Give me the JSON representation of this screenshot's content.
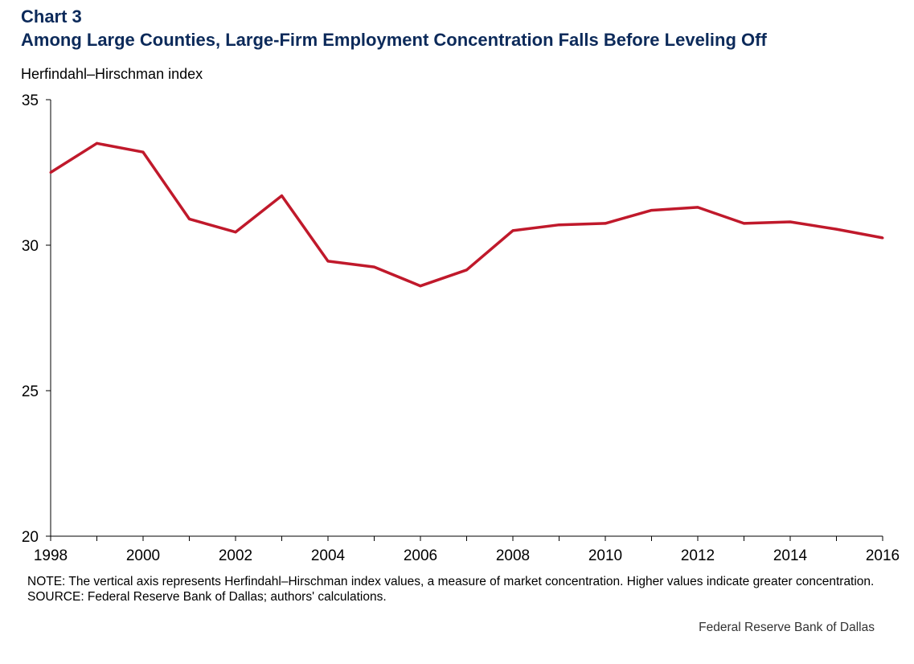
{
  "header": {
    "chart_label": "Chart 3",
    "title": "Among Large Counties, Large-Firm Employment Concentration Falls Before Leveling Off"
  },
  "colors": {
    "title": "#0c2a5a",
    "series": "#c0192b",
    "axis": "#000000"
  },
  "chart_data": {
    "type": "line",
    "title": "Among Large Counties, Large-Firm Employment Concentration Falls Before Leveling Off",
    "xlabel": "",
    "ylabel": "Herfindahl–Hirschman index",
    "x": [
      1998,
      1999,
      2000,
      2001,
      2002,
      2003,
      2004,
      2005,
      2006,
      2007,
      2008,
      2009,
      2010,
      2011,
      2012,
      2013,
      2014,
      2015,
      2016
    ],
    "series": [
      {
        "name": "Herfindahl–Hirschman index",
        "values": [
          32.5,
          33.5,
          33.2,
          30.9,
          30.45,
          31.7,
          29.45,
          29.25,
          28.6,
          29.15,
          30.5,
          30.7,
          30.75,
          31.2,
          31.3,
          30.75,
          30.8,
          30.55,
          30.25
        ]
      }
    ],
    "xlim": [
      1998,
      2016
    ],
    "ylim": [
      20,
      35
    ],
    "yticks": [
      20,
      25,
      30,
      35
    ],
    "ytick_labels": [
      "20",
      "25",
      "30",
      "35"
    ],
    "xticks": [
      1998,
      2000,
      2002,
      2004,
      2006,
      2008,
      2010,
      2012,
      2014,
      2016
    ],
    "xtick_labels": [
      "1998",
      "2000",
      "2002",
      "2004",
      "2006",
      "2008",
      "2010",
      "2012",
      "2014",
      "2016"
    ],
    "grid": false,
    "legend": "none"
  },
  "footer": {
    "note": "NOTE:  The vertical axis represents Herfindahl–Hirschman index values, a measure of market concentration. Higher values indicate greater concentration.",
    "source": "SOURCE:  Federal Reserve Bank of Dallas; authors' calculations.",
    "credit": "Federal Reserve  Bank of Dallas"
  }
}
